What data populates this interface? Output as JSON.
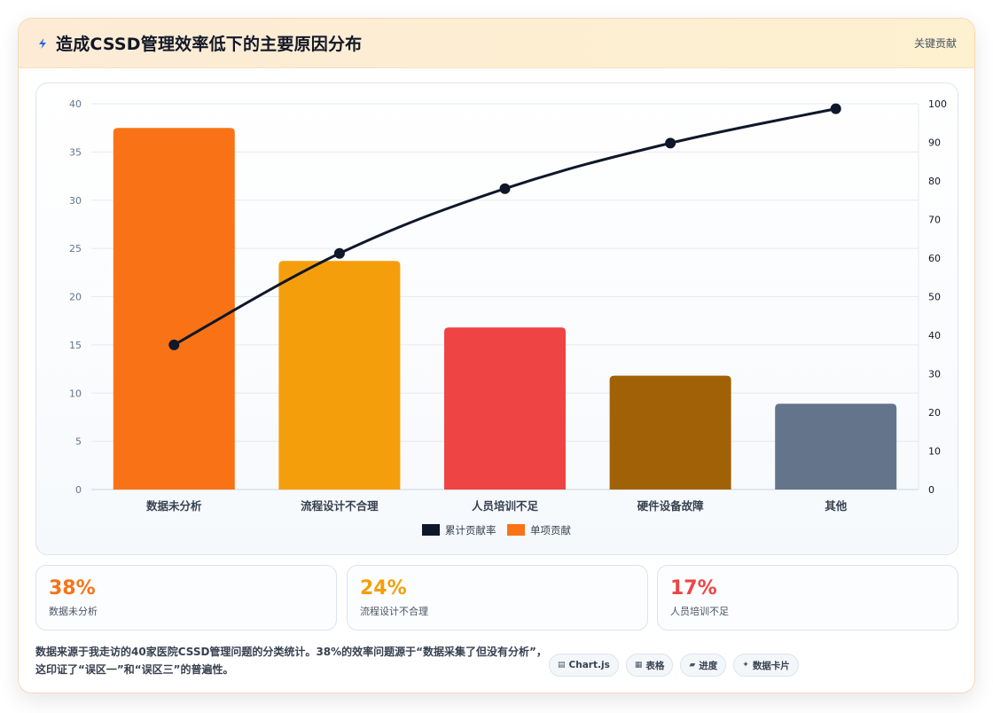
{
  "header": {
    "title": "造成CSSD管理效率低下的主要原因分布",
    "bolt_icon": "lightning-bolt-icon",
    "right_label": "关键贡献"
  },
  "colors": {
    "orange": "#f97316",
    "amber": "#f59e0b",
    "red": "#ef4444",
    "brown": "#a16207",
    "slate": "#64748b",
    "navy": "#0f172a"
  },
  "chart_data": {
    "type": "bar",
    "categories": [
      "数据未分析",
      "流程设计不合理",
      "人员培训不足",
      "硬件设备故障",
      "其他"
    ],
    "series": [
      {
        "name": "单项贡献",
        "type": "bar",
        "axis": "left",
        "values": [
          37.5,
          23.7,
          16.8,
          11.8,
          8.9
        ],
        "colors": [
          "#f97316",
          "#f59e0b",
          "#ef4444",
          "#a16207",
          "#64748b"
        ]
      },
      {
        "name": "累计贡献率",
        "type": "line",
        "axis": "right",
        "values": [
          37.5,
          61.2,
          78,
          89.8,
          98.7
        ],
        "color": "#0f172a"
      }
    ],
    "y_left": {
      "min": 0,
      "max": 40,
      "ticks": [
        0,
        5,
        10,
        15,
        20,
        25,
        30,
        35,
        40
      ]
    },
    "y_right": {
      "min": 0,
      "max": 100,
      "ticks": [
        0,
        10,
        20,
        30,
        40,
        50,
        60,
        70,
        80,
        90,
        100
      ]
    },
    "legend": {
      "position": "bottom",
      "items": [
        "累计贡献率",
        "单项贡献"
      ]
    },
    "grid": true
  },
  "stats": [
    {
      "value": "38%",
      "label": "数据未分析",
      "color": "#f97316"
    },
    {
      "value": "24%",
      "label": "流程设计不合理",
      "color": "#f59e0b"
    },
    {
      "value": "17%",
      "label": "人员培训不足",
      "color": "#ef4444"
    }
  ],
  "footer": {
    "note": "数据来源于我走访的40家医院CSSD管理问题的分类统计。38%的效率问题源于“数据采集了但没有分析”，这印证了“误区一”和“误区三”的普遍性。"
  },
  "badges": [
    {
      "icon": "▤",
      "icon_name": "chart-icon",
      "label": "Chart.js"
    },
    {
      "icon": "▦",
      "icon_name": "table-icon",
      "label": "表格"
    },
    {
      "icon": "▰",
      "icon_name": "progress-icon",
      "label": "进度"
    },
    {
      "icon": "✦",
      "icon_name": "sparkle-icon",
      "label": "数据卡片"
    }
  ]
}
